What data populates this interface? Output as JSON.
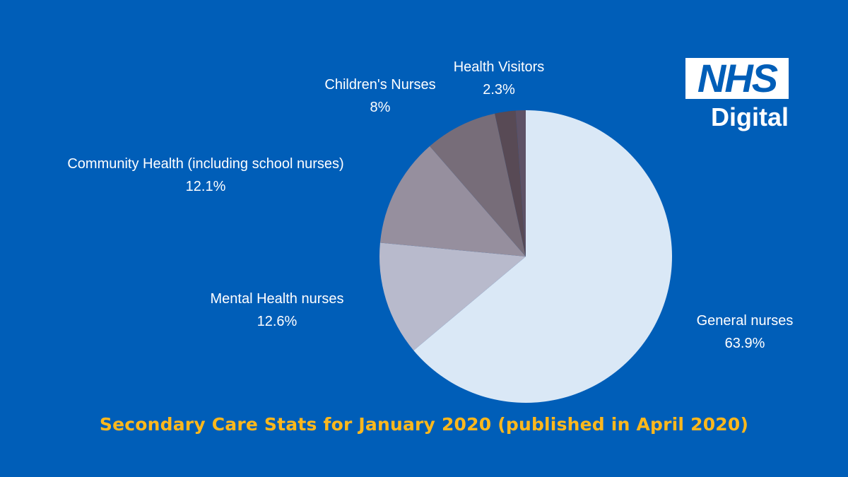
{
  "logo": {
    "box_text": "NHS",
    "sub_text": "Digital"
  },
  "footer": {
    "title": "Secondary Care Stats for January 2020 (published in April 2020)"
  },
  "chart_data": {
    "type": "pie",
    "title": "Secondary Care Stats for January 2020 (published in April 2020)",
    "start_angle_deg": 0,
    "direction": "clockwise",
    "slices": [
      {
        "label": "General nurses",
        "value": 63.9,
        "value_label": "63.9%",
        "color": "#DAE8F6"
      },
      {
        "label": "Mental Health nurses",
        "value": 12.6,
        "value_label": "12.6%",
        "color": "#B8BACC"
      },
      {
        "label": "Community Health (including school nurses)",
        "value": 12.1,
        "value_label": "12.1%",
        "color": "#968F9E"
      },
      {
        "label": "Children's Nurses",
        "value": 8,
        "value_label": "8%",
        "color": "#776D79"
      },
      {
        "label": "Health Visitors",
        "value": 2.3,
        "value_label": "2.3%",
        "color": "#584A55"
      },
      {
        "label": "",
        "value": 1.1,
        "value_label": "",
        "color": "#5E5266"
      }
    ]
  }
}
